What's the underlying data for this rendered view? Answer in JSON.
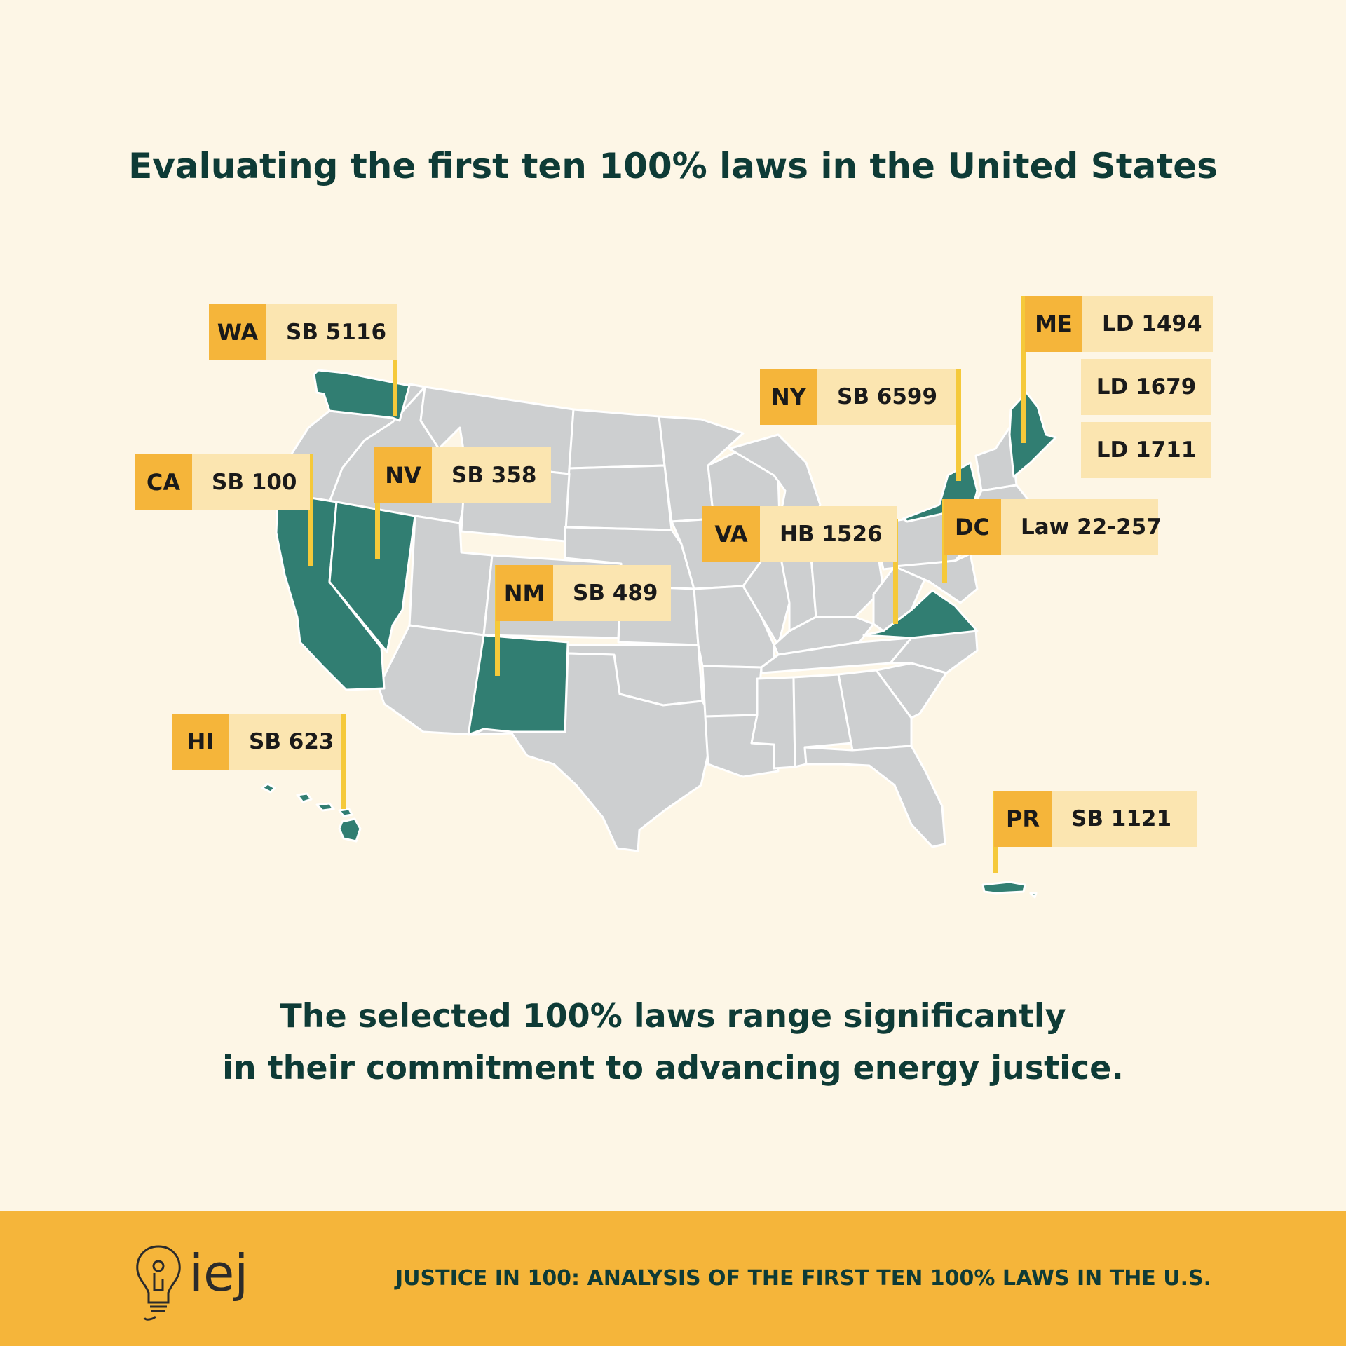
{
  "title": "Evaluating the first ten 100% laws in the United States",
  "subtitle_line1": "The selected 100% laws range significantly",
  "subtitle_line2": "in their commitment to advancing energy justice.",
  "footer": {
    "logo_text": "iej",
    "report_title": "JUSTICE IN 100: ANALYSIS OF THE FIRST TEN 100% LAWS IN THE U.S."
  },
  "colors": {
    "background": "#fdf6e6",
    "highlighted_state": "#317e72",
    "other_state": "#cdcfd0",
    "flag_code": "#f5b53a",
    "flag_bill": "#fbe5b0",
    "footer_bar": "#f5b53a",
    "title_text": "#0e3b36"
  },
  "laws": [
    {
      "code": "WA",
      "bills": [
        "SB 5116"
      ]
    },
    {
      "code": "CA",
      "bills": [
        "SB 100"
      ]
    },
    {
      "code": "NV",
      "bills": [
        "SB 358"
      ]
    },
    {
      "code": "NM",
      "bills": [
        "SB 489"
      ]
    },
    {
      "code": "HI",
      "bills": [
        "SB 623"
      ]
    },
    {
      "code": "NY",
      "bills": [
        "SB 6599"
      ]
    },
    {
      "code": "VA",
      "bills": [
        "HB 1526"
      ]
    },
    {
      "code": "DC",
      "bills": [
        "Law 22-257"
      ]
    },
    {
      "code": "ME",
      "bills": [
        "LD 1494",
        "LD 1679",
        "LD 1711"
      ]
    },
    {
      "code": "PR",
      "bills": [
        "SB 1121"
      ]
    }
  ]
}
